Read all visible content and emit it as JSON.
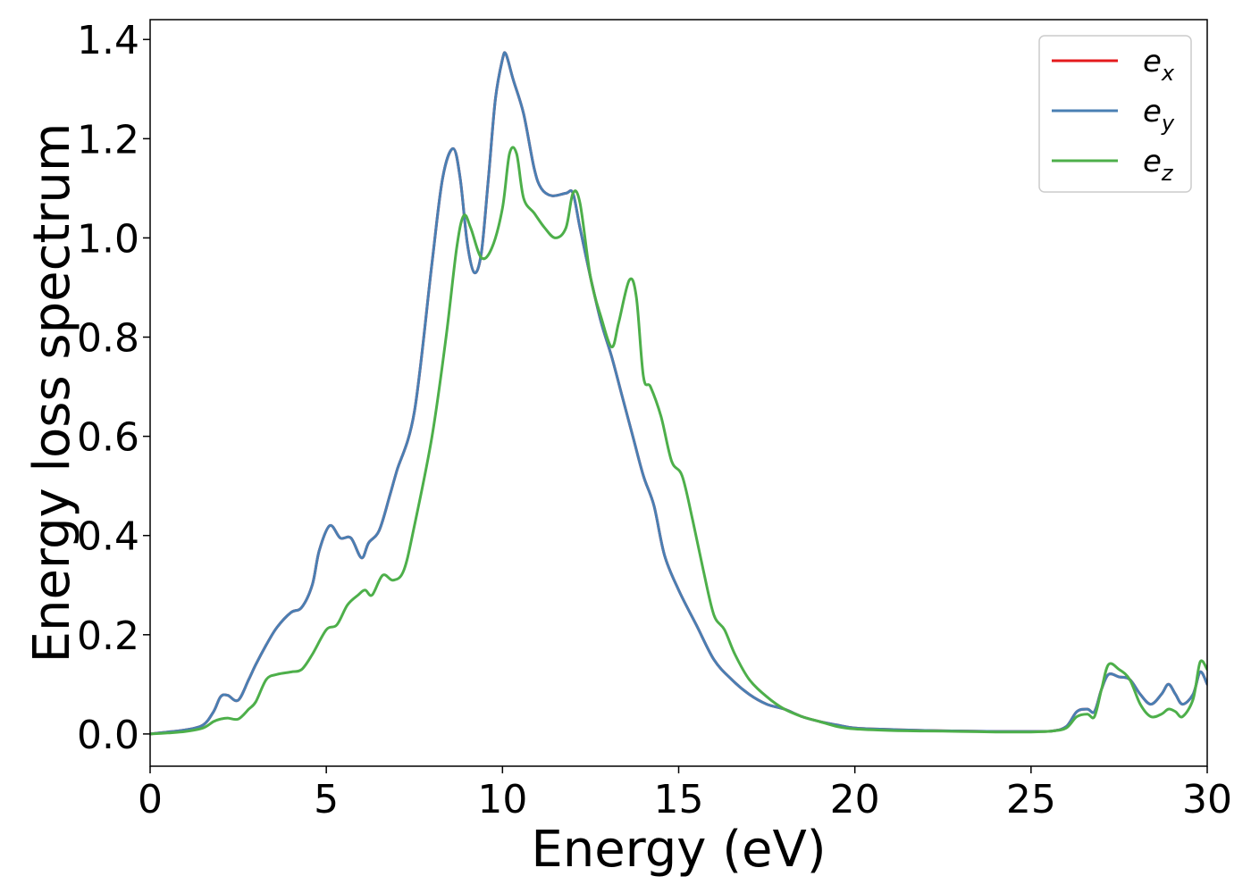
{
  "chart_data": {
    "type": "line",
    "title": "",
    "xlabel": "Energy (eV)",
    "ylabel": "Energy loss spectrum",
    "xlim": [
      0,
      30
    ],
    "ylim": [
      -0.065,
      1.44
    ],
    "xticks": [
      0,
      5,
      10,
      15,
      20,
      25,
      30
    ],
    "xtick_labels": [
      "0",
      "5",
      "10",
      "15",
      "20",
      "25",
      "30"
    ],
    "yticks": [
      0.0,
      0.2,
      0.4,
      0.6,
      0.8,
      1.0,
      1.2,
      1.4
    ],
    "ytick_labels": [
      "0.0",
      "0.2",
      "0.4",
      "0.6",
      "0.8",
      "1.0",
      "1.2",
      "1.4"
    ],
    "grid": false,
    "legend_position": "top-right",
    "series": [
      {
        "name": "e_x",
        "legend_base": "e",
        "legend_sub": "x",
        "color": "#e41a1c",
        "x": [
          0,
          0.5,
          1,
          1.5,
          1.8,
          2.0,
          2.2,
          2.5,
          2.8,
          3.0,
          3.3,
          3.6,
          4.0,
          4.3,
          4.6,
          4.8,
          5.1,
          5.4,
          5.7,
          6.0,
          6.2,
          6.5,
          6.8,
          7.0,
          7.5,
          8.0,
          8.3,
          8.6,
          8.8,
          9.0,
          9.2,
          9.4,
          9.6,
          9.8,
          10.0,
          10.1,
          10.3,
          10.6,
          10.9,
          11.1,
          11.4,
          11.8,
          12.0,
          12.2,
          12.5,
          12.8,
          13.1,
          13.4,
          13.7,
          14.0,
          14.3,
          14.6,
          15.0,
          15.5,
          16.0,
          16.5,
          17.0,
          17.5,
          18.0,
          18.5,
          19.0,
          19.5,
          20.0,
          21.0,
          22.0,
          23.0,
          24.0,
          25.0,
          25.6,
          26.0,
          26.3,
          26.6,
          26.8,
          27.0,
          27.2,
          27.5,
          27.8,
          28.1,
          28.4,
          28.7,
          28.9,
          29.1,
          29.3,
          29.6,
          29.8,
          30.0
        ],
        "values": [
          0.0,
          0.004,
          0.008,
          0.018,
          0.045,
          0.075,
          0.078,
          0.068,
          0.11,
          0.14,
          0.18,
          0.215,
          0.245,
          0.255,
          0.3,
          0.37,
          0.42,
          0.395,
          0.395,
          0.355,
          0.385,
          0.41,
          0.48,
          0.53,
          0.65,
          0.95,
          1.12,
          1.18,
          1.12,
          0.99,
          0.93,
          0.97,
          1.12,
          1.28,
          1.36,
          1.37,
          1.32,
          1.25,
          1.14,
          1.1,
          1.085,
          1.09,
          1.09,
          1.02,
          0.92,
          0.83,
          0.76,
          0.68,
          0.6,
          0.52,
          0.46,
          0.36,
          0.29,
          0.22,
          0.15,
          0.11,
          0.08,
          0.06,
          0.05,
          0.035,
          0.025,
          0.018,
          0.012,
          0.009,
          0.007,
          0.006,
          0.005,
          0.005,
          0.006,
          0.015,
          0.045,
          0.05,
          0.045,
          0.09,
          0.12,
          0.115,
          0.11,
          0.08,
          0.06,
          0.08,
          0.1,
          0.08,
          0.06,
          0.08,
          0.125,
          0.1
        ]
      },
      {
        "name": "e_y",
        "legend_base": "e",
        "legend_sub": "y",
        "color": "#4a7fb3",
        "x": [
          0,
          0.5,
          1,
          1.5,
          1.8,
          2.0,
          2.2,
          2.5,
          2.8,
          3.0,
          3.3,
          3.6,
          4.0,
          4.3,
          4.6,
          4.8,
          5.1,
          5.4,
          5.7,
          6.0,
          6.2,
          6.5,
          6.8,
          7.0,
          7.5,
          8.0,
          8.3,
          8.6,
          8.8,
          9.0,
          9.2,
          9.4,
          9.6,
          9.8,
          10.0,
          10.1,
          10.3,
          10.6,
          10.9,
          11.1,
          11.4,
          11.8,
          12.0,
          12.2,
          12.5,
          12.8,
          13.1,
          13.4,
          13.7,
          14.0,
          14.3,
          14.6,
          15.0,
          15.5,
          16.0,
          16.5,
          17.0,
          17.5,
          18.0,
          18.5,
          19.0,
          19.5,
          20.0,
          21.0,
          22.0,
          23.0,
          24.0,
          25.0,
          25.6,
          26.0,
          26.3,
          26.6,
          26.8,
          27.0,
          27.2,
          27.5,
          27.8,
          28.1,
          28.4,
          28.7,
          28.9,
          29.1,
          29.3,
          29.6,
          29.8,
          30.0
        ],
        "values": [
          0.0,
          0.004,
          0.008,
          0.018,
          0.045,
          0.075,
          0.078,
          0.068,
          0.11,
          0.14,
          0.18,
          0.215,
          0.245,
          0.255,
          0.3,
          0.37,
          0.42,
          0.395,
          0.395,
          0.355,
          0.385,
          0.41,
          0.48,
          0.53,
          0.65,
          0.95,
          1.12,
          1.18,
          1.12,
          0.99,
          0.93,
          0.97,
          1.12,
          1.28,
          1.36,
          1.37,
          1.32,
          1.25,
          1.14,
          1.1,
          1.085,
          1.09,
          1.09,
          1.02,
          0.92,
          0.83,
          0.76,
          0.68,
          0.6,
          0.52,
          0.46,
          0.36,
          0.29,
          0.22,
          0.15,
          0.11,
          0.08,
          0.06,
          0.05,
          0.035,
          0.025,
          0.018,
          0.012,
          0.009,
          0.007,
          0.006,
          0.005,
          0.005,
          0.006,
          0.015,
          0.045,
          0.05,
          0.045,
          0.09,
          0.12,
          0.115,
          0.11,
          0.08,
          0.06,
          0.08,
          0.1,
          0.08,
          0.06,
          0.08,
          0.125,
          0.1
        ]
      },
      {
        "name": "e_z",
        "legend_base": "e",
        "legend_sub": "z",
        "color": "#4daf4a",
        "x": [
          0,
          0.5,
          1,
          1.5,
          1.8,
          2.0,
          2.2,
          2.5,
          2.8,
          3.0,
          3.3,
          3.6,
          4.0,
          4.3,
          4.6,
          5.0,
          5.3,
          5.6,
          5.9,
          6.1,
          6.3,
          6.6,
          6.9,
          7.2,
          7.5,
          8.0,
          8.4,
          8.7,
          8.9,
          9.1,
          9.4,
          9.7,
          10.0,
          10.2,
          10.4,
          10.6,
          10.9,
          11.2,
          11.5,
          11.8,
          12.0,
          12.2,
          12.5,
          12.8,
          13.1,
          13.3,
          13.6,
          13.8,
          14.0,
          14.2,
          14.5,
          14.8,
          15.1,
          15.4,
          15.7,
          16.0,
          16.3,
          16.6,
          17.0,
          17.5,
          18.0,
          18.5,
          19.0,
          19.5,
          20.0,
          21.0,
          22.0,
          23.0,
          24.0,
          25.0,
          25.6,
          26.0,
          26.3,
          26.6,
          26.8,
          27.0,
          27.2,
          27.5,
          27.8,
          28.1,
          28.4,
          28.7,
          28.9,
          29.1,
          29.3,
          29.6,
          29.8,
          30.0
        ],
        "values": [
          0.0,
          0.002,
          0.005,
          0.012,
          0.025,
          0.03,
          0.032,
          0.03,
          0.05,
          0.065,
          0.11,
          0.12,
          0.125,
          0.13,
          0.16,
          0.21,
          0.22,
          0.26,
          0.28,
          0.29,
          0.28,
          0.32,
          0.31,
          0.33,
          0.42,
          0.6,
          0.8,
          0.98,
          1.045,
          1.02,
          0.96,
          0.98,
          1.06,
          1.17,
          1.17,
          1.08,
          1.05,
          1.02,
          1.0,
          1.02,
          1.09,
          1.07,
          0.92,
          0.84,
          0.78,
          0.83,
          0.915,
          0.88,
          0.72,
          0.7,
          0.64,
          0.55,
          0.52,
          0.43,
          0.33,
          0.24,
          0.21,
          0.16,
          0.11,
          0.075,
          0.05,
          0.035,
          0.025,
          0.015,
          0.01,
          0.007,
          0.006,
          0.005,
          0.004,
          0.004,
          0.006,
          0.012,
          0.035,
          0.04,
          0.035,
          0.09,
          0.14,
          0.13,
          0.11,
          0.06,
          0.035,
          0.04,
          0.05,
          0.045,
          0.035,
          0.07,
          0.145,
          0.13
        ]
      }
    ]
  }
}
